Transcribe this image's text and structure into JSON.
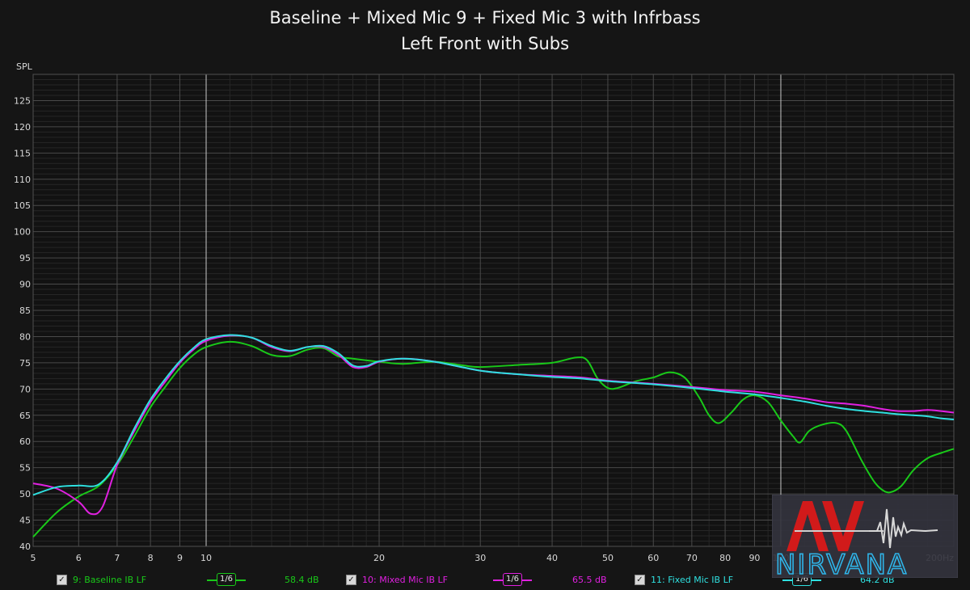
{
  "titles": {
    "line1": "Baseline + Mixed Mic 9 + Fixed Mic 3 with Infrbass",
    "line2": "Left Front with Subs"
  },
  "chart_data": {
    "type": "line",
    "title": "Baseline + Mixed Mic 9 + Fixed Mic 3 with Infrbass",
    "subtitle": "Left Front with Subs",
    "ylabel": "SPL",
    "xunit": "Hz",
    "xscale": "log",
    "xlim": [
      5,
      200
    ],
    "ylim": [
      40,
      130
    ],
    "x_ticks": [
      5,
      6,
      7,
      8,
      9,
      10,
      20,
      30,
      40,
      50,
      60,
      70,
      80,
      90,
      100,
      200
    ],
    "x_tick_labels": [
      "5",
      "6",
      "7",
      "8",
      "9",
      "10",
      "20",
      "30",
      "40",
      "50",
      "60",
      "70",
      "80",
      "90",
      "100",
      "200Hz"
    ],
    "y_ticks": [
      40,
      45,
      50,
      55,
      60,
      65,
      70,
      75,
      80,
      85,
      90,
      95,
      100,
      105,
      110,
      115,
      120,
      125
    ],
    "grid": true,
    "series": [
      {
        "name": "9: Baseline IB LF",
        "color": "#19c919",
        "smoothing": "1/6",
        "level": "58.4 dB",
        "points": [
          [
            5,
            41.8
          ],
          [
            5.5,
            46.5
          ],
          [
            6,
            49.5
          ],
          [
            6.5,
            51.5
          ],
          [
            7,
            55.5
          ],
          [
            7.5,
            61
          ],
          [
            8,
            66.5
          ],
          [
            8.5,
            70.5
          ],
          [
            9,
            74
          ],
          [
            9.5,
            76.5
          ],
          [
            10,
            78
          ],
          [
            11,
            79
          ],
          [
            12,
            78.2
          ],
          [
            13,
            76.5
          ],
          [
            14,
            76.3
          ],
          [
            15,
            77.5
          ],
          [
            16,
            77.8
          ],
          [
            17,
            76.2
          ],
          [
            18,
            75.8
          ],
          [
            20,
            75.2
          ],
          [
            22,
            74.8
          ],
          [
            25,
            75.2
          ],
          [
            28,
            74.5
          ],
          [
            30,
            74.2
          ],
          [
            35,
            74.6
          ],
          [
            40,
            75
          ],
          [
            44,
            76
          ],
          [
            46,
            75.5
          ],
          [
            48,
            72
          ],
          [
            50,
            70.2
          ],
          [
            52,
            70.2
          ],
          [
            56,
            71.5
          ],
          [
            60,
            72.2
          ],
          [
            64,
            73.2
          ],
          [
            68,
            72.2
          ],
          [
            72,
            68.5
          ],
          [
            75,
            65
          ],
          [
            78,
            63.5
          ],
          [
            82,
            65.5
          ],
          [
            86,
            68
          ],
          [
            90,
            68.8
          ],
          [
            95,
            67.5
          ],
          [
            100,
            64
          ],
          [
            105,
            61
          ],
          [
            108,
            59.8
          ],
          [
            112,
            62
          ],
          [
            118,
            63.2
          ],
          [
            125,
            63.5
          ],
          [
            130,
            62
          ],
          [
            138,
            56.5
          ],
          [
            145,
            52.5
          ],
          [
            150,
            50.8
          ],
          [
            155,
            50.3
          ],
          [
            162,
            51.5
          ],
          [
            170,
            54.5
          ],
          [
            180,
            56.8
          ],
          [
            190,
            57.8
          ],
          [
            200,
            58.6
          ]
        ]
      },
      {
        "name": "10: Mixed Mic IB LF",
        "color": "#e020e0",
        "smoothing": "1/6",
        "level": "65.5 dB",
        "points": [
          [
            5,
            52
          ],
          [
            5.5,
            51
          ],
          [
            6,
            48.5
          ],
          [
            6.3,
            46.2
          ],
          [
            6.6,
            47.5
          ],
          [
            7,
            55.5
          ],
          [
            7.5,
            62
          ],
          [
            8,
            67.5
          ],
          [
            8.5,
            71.5
          ],
          [
            9,
            75
          ],
          [
            9.5,
            77.5
          ],
          [
            10,
            79.2
          ],
          [
            11,
            80.2
          ],
          [
            12,
            79.8
          ],
          [
            13,
            78
          ],
          [
            14,
            77.2
          ],
          [
            15,
            78
          ],
          [
            16,
            78
          ],
          [
            17,
            76.5
          ],
          [
            18,
            74.2
          ],
          [
            19,
            74.2
          ],
          [
            20,
            75.2
          ],
          [
            22,
            75.8
          ],
          [
            25,
            75.2
          ],
          [
            30,
            73.5
          ],
          [
            35,
            72.8
          ],
          [
            40,
            72.5
          ],
          [
            45,
            72.2
          ],
          [
            50,
            71.6
          ],
          [
            60,
            71
          ],
          [
            70,
            70.4
          ],
          [
            80,
            69.8
          ],
          [
            90,
            69.5
          ],
          [
            100,
            68.8
          ],
          [
            110,
            68.2
          ],
          [
            120,
            67.5
          ],
          [
            130,
            67.2
          ],
          [
            140,
            66.8
          ],
          [
            150,
            66.2
          ],
          [
            160,
            65.8
          ],
          [
            170,
            65.8
          ],
          [
            180,
            66
          ],
          [
            190,
            65.8
          ],
          [
            200,
            65.5
          ]
        ]
      },
      {
        "name": "11: Fixed Mic IB LF",
        "color": "#2fe0e0",
        "smoothing": "1/6",
        "level": "64.2 dB",
        "points": [
          [
            5,
            49.8
          ],
          [
            5.5,
            51.3
          ],
          [
            6,
            51.6
          ],
          [
            6.5,
            51.8
          ],
          [
            7,
            56
          ],
          [
            7.5,
            62.5
          ],
          [
            8,
            68
          ],
          [
            8.5,
            72
          ],
          [
            9,
            75.3
          ],
          [
            9.5,
            77.8
          ],
          [
            10,
            79.5
          ],
          [
            11,
            80.3
          ],
          [
            12,
            79.8
          ],
          [
            13,
            78.2
          ],
          [
            14,
            77.3
          ],
          [
            15,
            78
          ],
          [
            16,
            78.2
          ],
          [
            17,
            76.8
          ],
          [
            18,
            74.5
          ],
          [
            19,
            74.4
          ],
          [
            20,
            75.3
          ],
          [
            22,
            75.8
          ],
          [
            25,
            75.2
          ],
          [
            30,
            73.5
          ],
          [
            35,
            72.8
          ],
          [
            40,
            72.3
          ],
          [
            45,
            72
          ],
          [
            50,
            71.5
          ],
          [
            60,
            70.9
          ],
          [
            70,
            70.2
          ],
          [
            80,
            69.5
          ],
          [
            90,
            69
          ],
          [
            100,
            68.3
          ],
          [
            110,
            67.6
          ],
          [
            120,
            66.8
          ],
          [
            130,
            66.2
          ],
          [
            140,
            65.8
          ],
          [
            150,
            65.5
          ],
          [
            160,
            65.2
          ],
          [
            170,
            65
          ],
          [
            180,
            64.8
          ],
          [
            190,
            64.4
          ],
          [
            200,
            64.2
          ]
        ]
      }
    ]
  },
  "legend": [
    {
      "label": "9: Baseline IB LF",
      "checked": true,
      "smoothing": "1/6",
      "level": "58.4 dB",
      "color": "#19c919"
    },
    {
      "label": "10: Mixed Mic IB LF",
      "checked": true,
      "smoothing": "1/6",
      "level": "65.5 dB",
      "color": "#e020e0"
    },
    {
      "label": "11: Fixed Mic IB LF",
      "checked": true,
      "smoothing": "1/6",
      "level": "64.2 dB",
      "color": "#2fe0e0"
    }
  ],
  "watermark": {
    "text1": "AV",
    "text2": "NIRVANA"
  },
  "colors": {
    "background": "#151515",
    "grid_major": "#4a4a4a",
    "grid_minor": "#262626",
    "axis_text": "#d8d8d8"
  }
}
